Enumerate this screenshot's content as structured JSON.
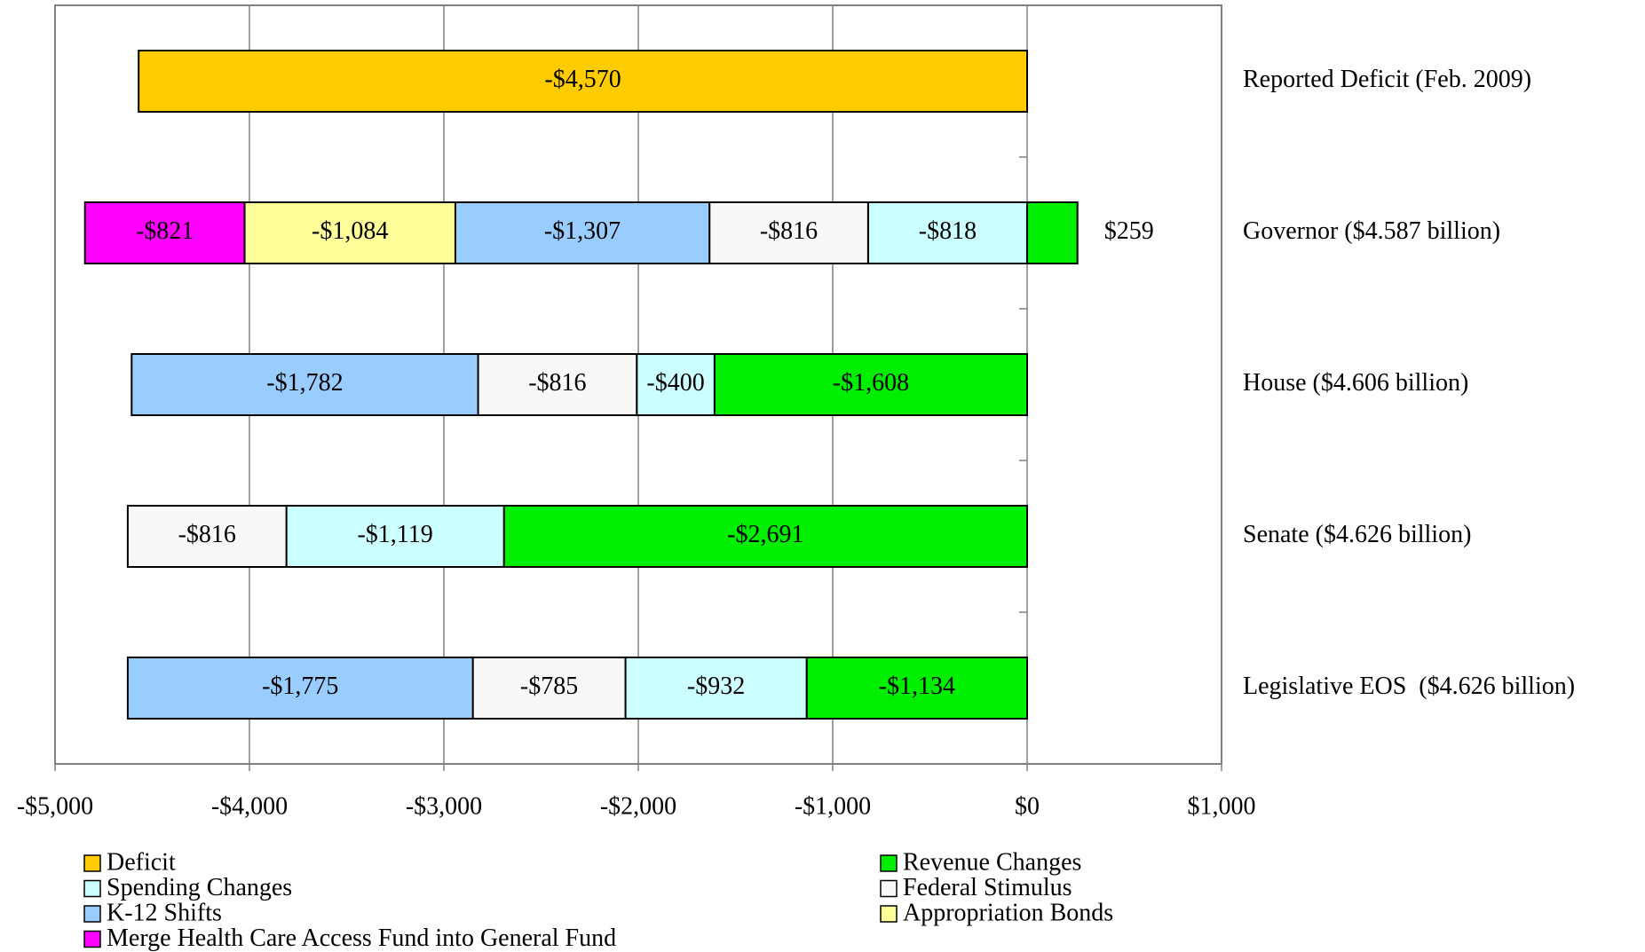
{
  "chart_data": {
    "type": "stacked-bar-horizontal",
    "categories": [
      "Reported Deficit (Feb. 2009)",
      "Governor ($4.587 billion)",
      "House ($4.606 billion)",
      "Senate ($4.626 billion)",
      "Legislative EOS  ($4.626 billion)"
    ],
    "series": [
      {
        "name": "Deficit",
        "color": "#ffcc00",
        "values": [
          -4570,
          null,
          null,
          null,
          null
        ],
        "value_labels": [
          "-$4,570",
          null,
          null,
          null,
          null
        ]
      },
      {
        "name": "Revenue Changes",
        "color": "#00ee00",
        "values": [
          null,
          259,
          -1608,
          -2691,
          -1134
        ],
        "value_labels": [
          null,
          "$259",
          "-$1,608",
          "-$2,691",
          "-$1,134"
        ]
      },
      {
        "name": "Spending Changes",
        "color": "#ccffff",
        "values": [
          null,
          -818,
          -400,
          -1119,
          -932
        ],
        "value_labels": [
          null,
          "-$818",
          "-$400",
          "-$1,119",
          "-$932"
        ]
      },
      {
        "name": "Federal Stimulus",
        "color": "#f8f8f8",
        "values": [
          null,
          -816,
          -816,
          -816,
          -785
        ],
        "value_labels": [
          null,
          "-$816",
          "-$816",
          "-$816",
          "-$785"
        ]
      },
      {
        "name": "K-12 Shifts",
        "color": "#99ccff",
        "values": [
          null,
          -1307,
          -1782,
          null,
          -1775
        ],
        "value_labels": [
          null,
          "-$1,307",
          "-$1,782",
          null,
          "-$1,775"
        ]
      },
      {
        "name": "Appropriation Bonds",
        "color": "#ffff99",
        "values": [
          null,
          -1084,
          null,
          null,
          null
        ],
        "value_labels": [
          null,
          "-$1,084",
          null,
          null,
          null
        ]
      },
      {
        "name": "Merge Health Care Access Fund into General Fund",
        "color": "#ff00ff",
        "values": [
          null,
          -821,
          null,
          null,
          null
        ],
        "value_labels": [
          null,
          "-$821",
          null,
          null,
          null
        ]
      }
    ],
    "xlim": [
      -5000,
      1000
    ],
    "xticks": [
      {
        "value": -5000,
        "label": "-$5,000"
      },
      {
        "value": -4000,
        "label": "-$4,000"
      },
      {
        "value": -3000,
        "label": "-$3,000"
      },
      {
        "value": -2000,
        "label": "-$2,000"
      },
      {
        "value": -1000,
        "label": "-$1,000"
      },
      {
        "value": 0,
        "label": "$0"
      },
      {
        "value": 1000,
        "label": "$1,000"
      }
    ],
    "grid": true,
    "legend": "bottom"
  }
}
